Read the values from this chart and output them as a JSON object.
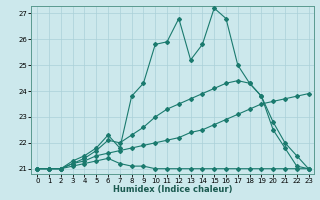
{
  "xlabel": "Humidex (Indice chaleur)",
  "xlim": [
    -0.5,
    23.5
  ],
  "ylim": [
    20.8,
    27.3
  ],
  "yticks": [
    21,
    22,
    23,
    24,
    25,
    26,
    27
  ],
  "xticks": [
    0,
    1,
    2,
    3,
    4,
    5,
    6,
    7,
    8,
    9,
    10,
    11,
    12,
    13,
    14,
    15,
    16,
    17,
    18,
    19,
    20,
    21,
    22,
    23
  ],
  "bg_color": "#cce8ec",
  "grid_color": "#aad0d8",
  "line_color": "#1a7a6e",
  "figsize": [
    3.2,
    2.0
  ],
  "dpi": 100,
  "series": [
    {
      "x": [
        0,
        1,
        2,
        3,
        4,
        5,
        6,
        7,
        8,
        9,
        10,
        11,
        12,
        13,
        14,
        15,
        16,
        17,
        18,
        19,
        20,
        21,
        22,
        23
      ],
      "y": [
        21.0,
        21.0,
        21.0,
        21.1,
        21.2,
        21.3,
        21.4,
        21.2,
        21.1,
        21.1,
        21.0,
        21.0,
        21.0,
        21.0,
        21.0,
        21.0,
        21.0,
        21.0,
        21.0,
        21.0,
        21.0,
        21.0,
        21.0,
        21.0
      ],
      "marker": "D",
      "markersize": 2.0,
      "linewidth": 0.8
    },
    {
      "x": [
        0,
        1,
        2,
        3,
        4,
        5,
        6,
        7,
        8,
        9,
        10,
        11,
        12,
        13,
        14,
        15,
        16,
        17,
        18,
        19,
        20,
        21,
        22,
        23
      ],
      "y": [
        21.0,
        21.0,
        21.0,
        21.2,
        21.3,
        21.5,
        21.6,
        21.7,
        21.8,
        21.9,
        22.0,
        22.1,
        22.2,
        22.4,
        22.5,
        22.7,
        22.9,
        23.1,
        23.3,
        23.5,
        23.6,
        23.7,
        23.8,
        23.9
      ],
      "marker": "D",
      "markersize": 2.0,
      "linewidth": 0.8
    },
    {
      "x": [
        0,
        1,
        2,
        3,
        4,
        5,
        6,
        7,
        8,
        9,
        10,
        11,
        12,
        13,
        14,
        15,
        16,
        17,
        18,
        19,
        20,
        21,
        22,
        23
      ],
      "y": [
        21.0,
        21.0,
        21.0,
        21.2,
        21.4,
        21.7,
        22.1,
        22.0,
        22.3,
        22.6,
        23.0,
        23.3,
        23.5,
        23.7,
        23.9,
        24.1,
        24.3,
        24.4,
        24.3,
        23.8,
        22.8,
        22.0,
        21.5,
        21.0
      ],
      "marker": "D",
      "markersize": 2.0,
      "linewidth": 0.8
    },
    {
      "x": [
        0,
        1,
        2,
        3,
        4,
        5,
        6,
        7,
        8,
        9,
        10,
        11,
        12,
        13,
        14,
        15,
        16,
        17,
        18,
        19,
        20,
        21,
        22,
        23
      ],
      "y": [
        21.0,
        21.0,
        21.0,
        21.3,
        21.5,
        21.8,
        22.3,
        21.8,
        23.8,
        24.3,
        25.8,
        25.9,
        26.8,
        25.2,
        25.8,
        27.2,
        26.8,
        25.0,
        24.3,
        23.8,
        22.5,
        21.8,
        21.1,
        21.0
      ],
      "marker": "D",
      "markersize": 2.0,
      "linewidth": 0.8
    }
  ]
}
